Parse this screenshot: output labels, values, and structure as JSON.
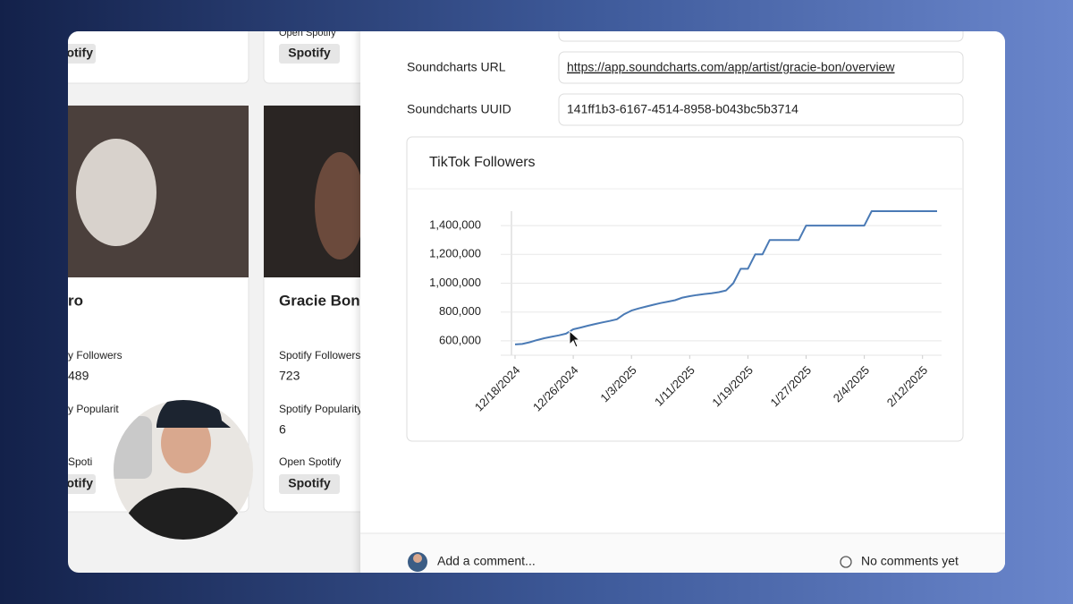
{
  "left_cards": [
    {
      "top_button": "otify",
      "name": "ro",
      "followers_label": "y Followers",
      "followers": "489",
      "popularity_label": "y Popularit",
      "open_label": "Spoti",
      "button": "otify"
    },
    {
      "top_open_label": "Open Spotify",
      "top_button": "Spotify",
      "name": "Gracie Bon",
      "followers_label": "Spotify Followers",
      "followers": "723",
      "popularity_label": "Spotify Popularity",
      "popularity": "6",
      "open_label": "Open Spotify",
      "button": "Spotify"
    }
  ],
  "fields": [
    {
      "label": "Soundcharts URL",
      "value": "https://app.soundcharts.com/app/artist/gracie-bon/overview"
    },
    {
      "label": "Soundcharts UUID",
      "value": "141ff1b3-6167-4514-8958-b043bc5b3714"
    }
  ],
  "footer": {
    "comment_placeholder": "Add a comment...",
    "comments_status": "No comments yet"
  },
  "chart_data": {
    "type": "line",
    "title": "TikTok Followers",
    "x": [
      "12/18/2024",
      "12/19/2024",
      "12/20/2024",
      "12/21/2024",
      "12/22/2024",
      "12/23/2024",
      "12/24/2024",
      "12/25/2024",
      "12/26/2024",
      "12/27/2024",
      "12/28/2024",
      "12/29/2024",
      "12/30/2024",
      "12/31/2024",
      "1/1/2025",
      "1/2/2025",
      "1/3/2025",
      "1/4/2025",
      "1/5/2025",
      "1/6/2025",
      "1/7/2025",
      "1/8/2025",
      "1/9/2025",
      "1/10/2025",
      "1/11/2025",
      "1/12/2025",
      "1/13/2025",
      "1/14/2025",
      "1/15/2025",
      "1/16/2025",
      "1/17/2025",
      "1/18/2025",
      "1/19/2025",
      "1/20/2025",
      "1/21/2025",
      "1/22/2025",
      "1/23/2025",
      "1/24/2025",
      "1/25/2025",
      "1/26/2025",
      "1/27/2025",
      "1/28/2025",
      "1/29/2025",
      "1/30/2025",
      "1/31/2025",
      "2/1/2025",
      "2/2/2025",
      "2/3/2025",
      "2/4/2025",
      "2/5/2025",
      "2/6/2025",
      "2/7/2025",
      "2/8/2025",
      "2/9/2025",
      "2/10/2025",
      "2/11/2025",
      "2/12/2025",
      "2/13/2025",
      "2/14/2025"
    ],
    "series": [
      {
        "name": "TikTok Followers",
        "color": "#4a7ab5",
        "values": [
          575000,
          578000,
          590000,
          605000,
          618000,
          628000,
          638000,
          650000,
          680000,
          692000,
          705000,
          717000,
          728000,
          738000,
          750000,
          785000,
          810000,
          825000,
          838000,
          850000,
          862000,
          872000,
          882000,
          900000,
          910000,
          918000,
          925000,
          930000,
          938000,
          950000,
          1000000,
          1100000,
          1100000,
          1200000,
          1200000,
          1300000,
          1300000,
          1300000,
          1300000,
          1300000,
          1400000,
          1400000,
          1400000,
          1400000,
          1400000,
          1400000,
          1400000,
          1400000,
          1400000,
          1500000,
          1500000,
          1500000,
          1500000,
          1500000,
          1500000,
          1500000,
          1500000,
          1500000,
          1500000
        ]
      }
    ],
    "xticks": [
      "12/18/2024",
      "12/26/2024",
      "1/3/2025",
      "1/11/2025",
      "1/19/2025",
      "1/27/2025",
      "2/4/2025",
      "2/12/2025"
    ],
    "ylim": [
      500000,
      1500000
    ],
    "yticks": [
      {
        "value": 600000,
        "label": "600,000"
      },
      {
        "value": 800000,
        "label": "800,000"
      },
      {
        "value": 1000000,
        "label": "1,000,000"
      },
      {
        "value": 1200000,
        "label": "1,200,000"
      },
      {
        "value": 1400000,
        "label": "1,400,000"
      }
    ],
    "grid": true
  }
}
